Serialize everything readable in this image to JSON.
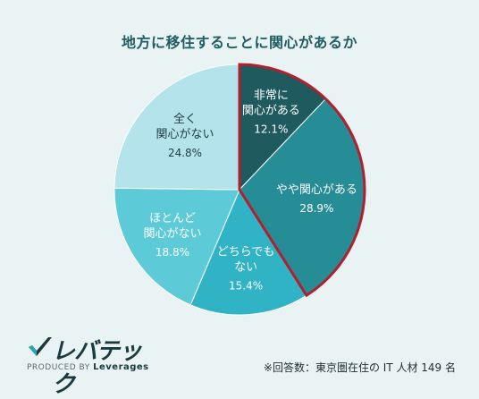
{
  "title": "地方に移住することに関心があるか",
  "chart_data": {
    "type": "pie",
    "categories": [
      "非常に関心がある",
      "やや関心がある",
      "どちらでもない",
      "ほとんど関心がない",
      "全く関心がない"
    ],
    "values": [
      12.1,
      28.9,
      15.4,
      18.8,
      24.8
    ],
    "value_unit": "%",
    "colors": [
      "#1e5a5e",
      "#268c95",
      "#30b3c4",
      "#5ccad7",
      "#b4e3ec"
    ],
    "highlight_color": "#b2202e",
    "highlight_slices": [
      "非常に関心がある",
      "やや関心がある"
    ],
    "labels": [
      {
        "lines": [
          "非常に",
          "関心がある"
        ],
        "value": "12.1%"
      },
      {
        "lines": [
          "やや関心がある"
        ],
        "value": "28.9%"
      },
      {
        "lines": [
          "どちらでも",
          "ない"
        ],
        "value": "15.4%"
      },
      {
        "lines": [
          "ほとんど",
          "関心がない"
        ],
        "value": "18.8%"
      },
      {
        "lines": [
          "全く",
          "関心がない"
        ],
        "value": "24.8%"
      }
    ]
  },
  "logo": {
    "name": "レバテック",
    "produced_by": "PRODUCED BY",
    "brand": "Leverages"
  },
  "footnote": "※回答数：東京圏在住の IT 人材 149 名"
}
